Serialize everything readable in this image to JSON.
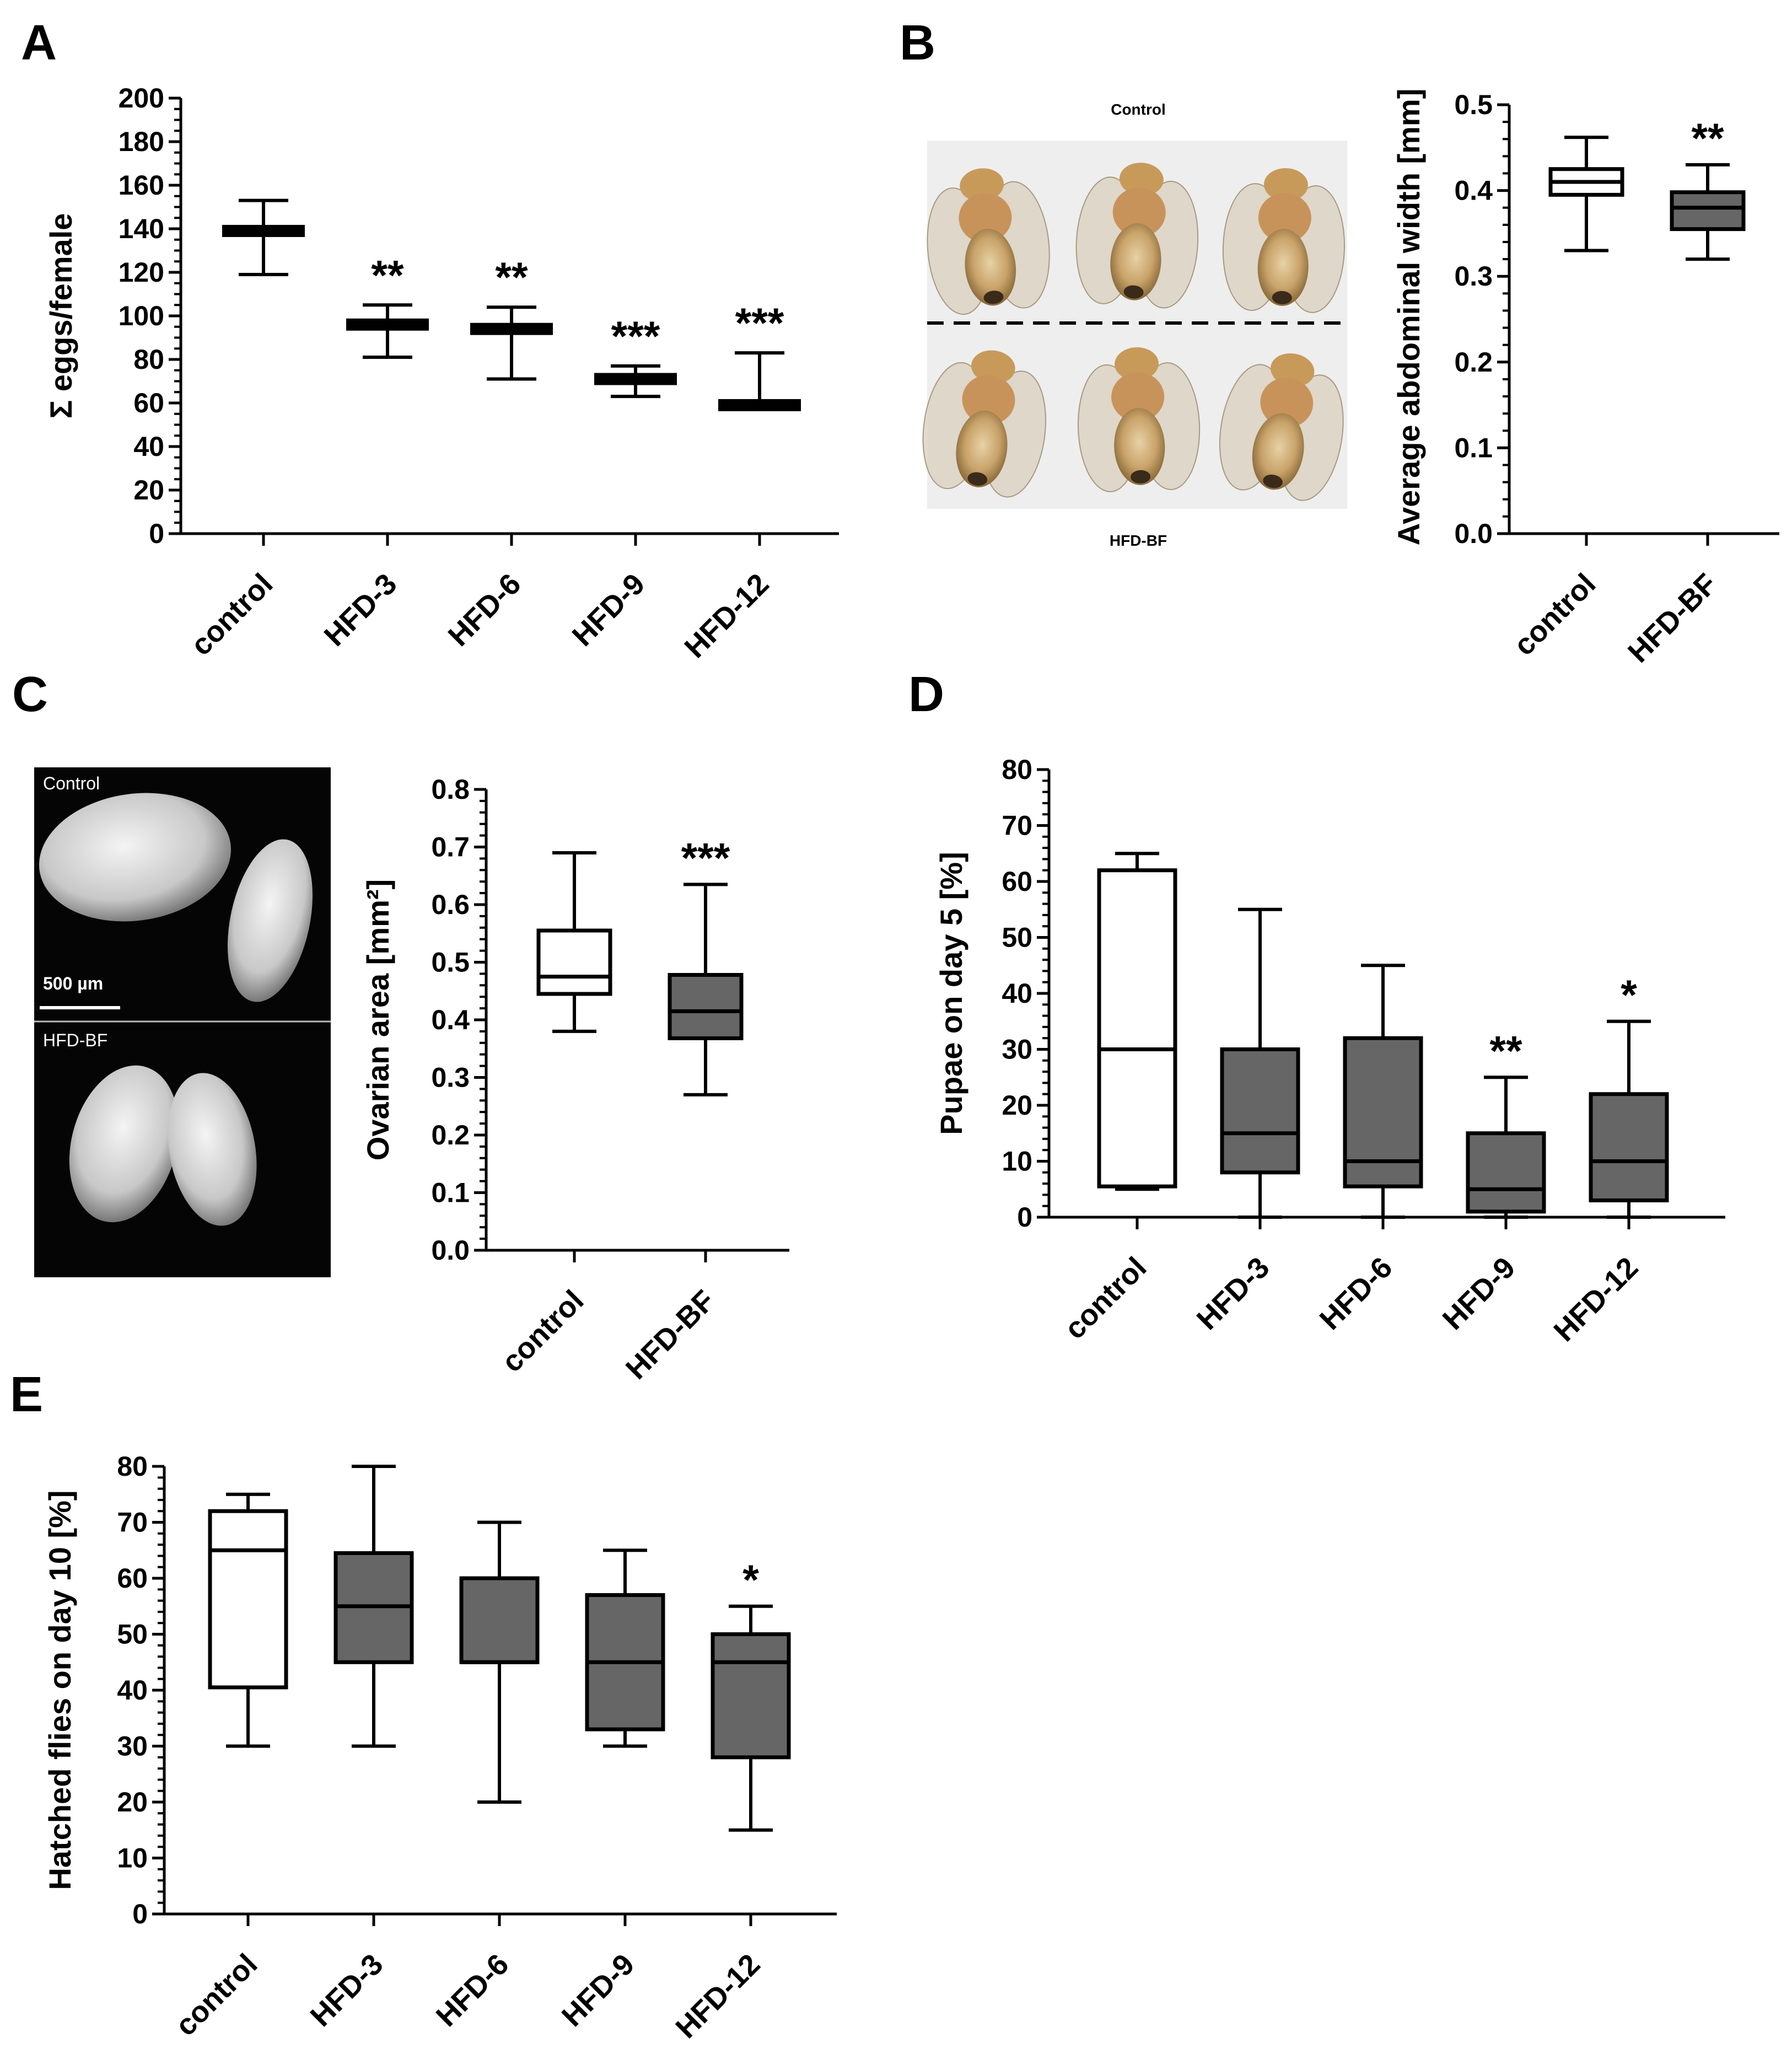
{
  "panels": {
    "A": "A",
    "B": "B",
    "C": "C",
    "D": "D",
    "E": "E"
  },
  "colors": {
    "control_fill": "#ffffff",
    "treatment_fill": "#666666",
    "stroke": "#000000"
  },
  "photo_B": {
    "top_label": "Control",
    "bottom_label": "HFD-BF"
  },
  "photo_C": {
    "top_label": "Control",
    "bottom_label": "HFD-BF",
    "scale_label": "500 µm"
  },
  "chart_data": [
    {
      "id": "A",
      "type": "scatter",
      "style": "mean-line-with-range-whiskers",
      "ylabel": "Σ eggs/female",
      "ylim": [
        0,
        200
      ],
      "yticks": [
        0,
        20,
        40,
        60,
        80,
        100,
        120,
        140,
        160,
        180,
        200
      ],
      "categories": [
        "control",
        "HFD-3",
        "HFD-6",
        "HFD-9",
        "HFD-12"
      ],
      "mean": [
        139,
        96,
        94,
        71,
        59
      ],
      "min": [
        119,
        81,
        71,
        63,
        59
      ],
      "max": [
        153,
        105,
        104,
        77,
        83
      ],
      "significance": [
        "",
        "**",
        "**",
        "***",
        "***"
      ]
    },
    {
      "id": "B",
      "type": "box",
      "ylabel": "Average abdominal width [mm]",
      "ylim": [
        0,
        0.5
      ],
      "yticks": [
        0.0,
        0.1,
        0.2,
        0.3,
        0.4,
        0.5
      ],
      "categories": [
        "control",
        "HFD-BF"
      ],
      "whisker_low": [
        0.33,
        0.32
      ],
      "q1": [
        0.395,
        0.355
      ],
      "median": [
        0.41,
        0.38
      ],
      "q3": [
        0.425,
        0.398
      ],
      "whisker_high": [
        0.462,
        0.43
      ],
      "significance": [
        "",
        "**"
      ]
    },
    {
      "id": "C",
      "type": "box",
      "ylabel": "Ovarian area [mm²]",
      "ylim": [
        0,
        0.8
      ],
      "yticks": [
        0.0,
        0.1,
        0.2,
        0.3,
        0.4,
        0.5,
        0.6,
        0.7,
        0.8
      ],
      "categories": [
        "control",
        "HFD-BF"
      ],
      "whisker_low": [
        0.38,
        0.27
      ],
      "q1": [
        0.445,
        0.368
      ],
      "median": [
        0.475,
        0.415
      ],
      "q3": [
        0.555,
        0.478
      ],
      "whisker_high": [
        0.69,
        0.635
      ],
      "significance": [
        "",
        "***"
      ]
    },
    {
      "id": "D",
      "type": "box",
      "ylabel": "Pupae on day 5 [%]",
      "ylim": [
        0,
        80
      ],
      "yticks": [
        0,
        10,
        20,
        30,
        40,
        50,
        60,
        70,
        80
      ],
      "categories": [
        "control",
        "HFD-3",
        "HFD-6",
        "HFD-9",
        "HFD-12"
      ],
      "whisker_low": [
        5,
        0,
        0,
        0,
        0
      ],
      "q1": [
        5.5,
        8,
        5.5,
        1,
        3
      ],
      "median": [
        30,
        15,
        10,
        5,
        10
      ],
      "q3": [
        62,
        30,
        32,
        15,
        22
      ],
      "whisker_high": [
        65,
        55,
        45,
        25,
        35
      ],
      "significance": [
        "",
        "",
        "",
        "**",
        "*"
      ]
    },
    {
      "id": "E",
      "type": "box",
      "ylabel": "Hatched flies on day 10 [%]",
      "ylim": [
        0,
        80
      ],
      "yticks": [
        0,
        10,
        20,
        30,
        40,
        50,
        60,
        70,
        80
      ],
      "categories": [
        "control",
        "HFD-3",
        "HFD-6",
        "HFD-9",
        "HFD-12"
      ],
      "whisker_low": [
        30,
        30,
        20,
        30,
        15
      ],
      "q1": [
        40.5,
        45,
        45,
        33,
        28
      ],
      "median": [
        65,
        55,
        45,
        45,
        45
      ],
      "q3": [
        72,
        64.5,
        60,
        57,
        50
      ],
      "whisker_high": [
        75,
        80,
        70,
        65,
        55
      ],
      "significance": [
        "",
        "",
        "",
        "",
        "*"
      ]
    }
  ]
}
